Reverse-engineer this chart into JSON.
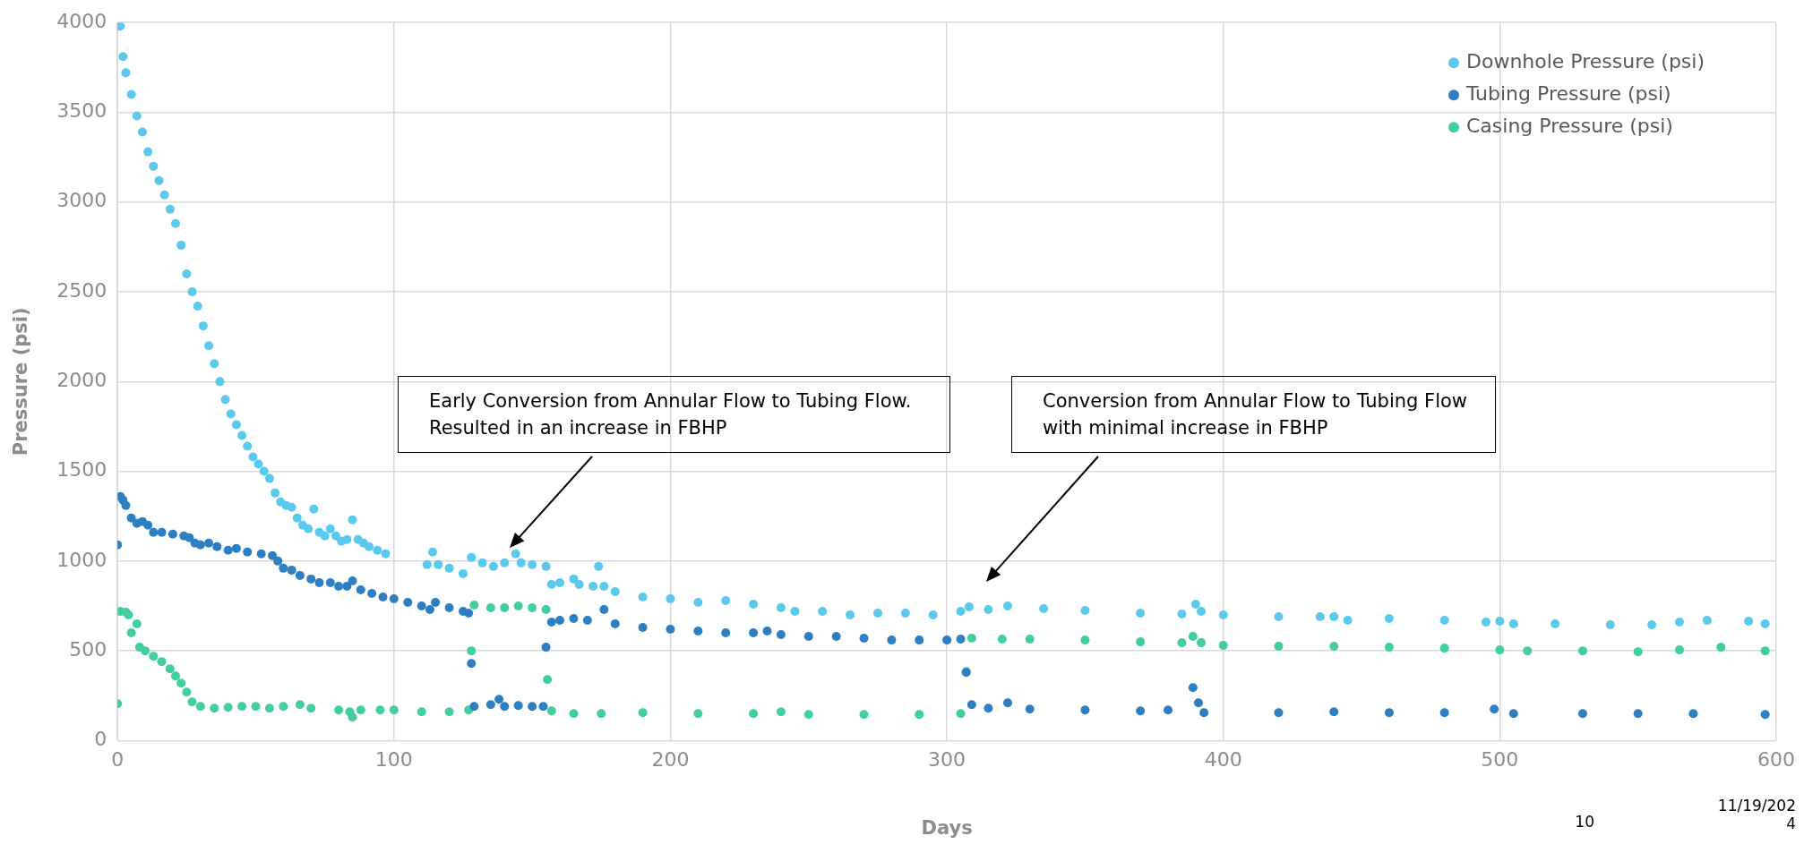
{
  "chart_data": {
    "type": "scatter",
    "xlabel": "Days",
    "ylabel": "Pressure (psi)",
    "xlim": [
      0,
      600
    ],
    "xticks": [
      0,
      100,
      200,
      300,
      400,
      500,
      600
    ],
    "ylim": [
      0,
      4000
    ],
    "yticks": [
      0,
      500,
      1000,
      1500,
      2000,
      2500,
      3000,
      3500,
      4000
    ],
    "grid": true,
    "legend": "top right",
    "marker": "circle",
    "series": [
      {
        "name": "Downhole Pressure (psi)",
        "color": "#5bc8ee",
        "x": [
          1,
          2,
          3,
          5,
          7,
          9,
          11,
          13,
          15,
          17,
          19,
          21,
          23,
          25,
          27,
          29,
          31,
          33,
          35,
          37,
          39,
          41,
          43,
          45,
          47,
          49,
          51,
          53,
          55,
          57,
          59,
          61,
          63,
          65,
          67,
          69,
          71,
          73,
          75,
          77,
          79,
          81,
          83,
          85,
          87,
          89,
          91,
          94,
          97,
          112,
          114,
          116,
          120,
          125,
          128,
          132,
          136,
          140,
          144,
          146,
          150,
          155,
          157,
          160,
          165,
          167,
          172,
          174,
          176,
          180,
          190,
          200,
          210,
          220,
          230,
          240,
          245,
          255,
          265,
          275,
          285,
          295,
          305,
          308,
          315,
          322,
          335,
          350,
          370,
          385,
          390,
          392,
          400,
          420,
          435,
          440,
          445,
          460,
          480,
          495,
          500,
          505,
          520,
          540,
          555,
          565,
          575,
          590,
          596
        ],
        "values": [
          3980,
          3810,
          3720,
          3600,
          3480,
          3390,
          3280,
          3200,
          3120,
          3040,
          2960,
          2880,
          2760,
          2600,
          2500,
          2420,
          2310,
          2200,
          2100,
          2000,
          1900,
          1820,
          1760,
          1700,
          1640,
          1580,
          1540,
          1500,
          1460,
          1380,
          1330,
          1310,
          1300,
          1240,
          1200,
          1180,
          1290,
          1160,
          1140,
          1180,
          1140,
          1110,
          1120,
          1230,
          1120,
          1100,
          1080,
          1060,
          1040,
          980,
          1050,
          980,
          960,
          930,
          1020,
          990,
          970,
          990,
          1040,
          990,
          980,
          970,
          870,
          880,
          900,
          870,
          860,
          970,
          860,
          830,
          800,
          790,
          770,
          780,
          760,
          740,
          720,
          720,
          700,
          710,
          710,
          700,
          720,
          745,
          730,
          750,
          735,
          725,
          710,
          705,
          760,
          720,
          700,
          690,
          690,
          690,
          670,
          680,
          670,
          660,
          665,
          650,
          650,
          645,
          645,
          660,
          670,
          665,
          650
        ]
      },
      {
        "name": "Tubing Pressure (psi)",
        "color": "#2e7fc2",
        "x": [
          0,
          1,
          2,
          3,
          5,
          7,
          9,
          11,
          13,
          16,
          20,
          24,
          26,
          28,
          30,
          33,
          36,
          40,
          43,
          47,
          52,
          56,
          58,
          60,
          63,
          66,
          70,
          73,
          77,
          80,
          83,
          85,
          88,
          92,
          96,
          100,
          105,
          110,
          113,
          115,
          120,
          125,
          127,
          128,
          129,
          135,
          138,
          140,
          145,
          150,
          154,
          155,
          157,
          160,
          165,
          170,
          176,
          180,
          190,
          200,
          210,
          220,
          230,
          235,
          240,
          250,
          260,
          270,
          280,
          290,
          300,
          305,
          307,
          309,
          315,
          322,
          330,
          350,
          370,
          380,
          389,
          391,
          393,
          420,
          440,
          460,
          480,
          498,
          505,
          530,
          550,
          570,
          596
        ],
        "values": [
          1090,
          1360,
          1340,
          1310,
          1240,
          1210,
          1220,
          1200,
          1160,
          1160,
          1150,
          1140,
          1130,
          1100,
          1090,
          1100,
          1080,
          1060,
          1070,
          1050,
          1040,
          1030,
          1000,
          960,
          950,
          920,
          900,
          880,
          880,
          860,
          860,
          890,
          840,
          820,
          800,
          790,
          770,
          750,
          730,
          770,
          740,
          720,
          710,
          430,
          190,
          200,
          230,
          190,
          195,
          190,
          190,
          520,
          660,
          670,
          680,
          670,
          730,
          650,
          630,
          620,
          610,
          600,
          600,
          610,
          590,
          580,
          580,
          570,
          560,
          560,
          560,
          565,
          380,
          200,
          180,
          210,
          175,
          170,
          165,
          170,
          295,
          210,
          155,
          155,
          160,
          155,
          155,
          175,
          150,
          150,
          150,
          150,
          145
        ]
      },
      {
        "name": "Casing Pressure (psi)",
        "color": "#41cf9c",
        "x": [
          0,
          1,
          3,
          4,
          5,
          7,
          8,
          10,
          13,
          16,
          19,
          21,
          23,
          25,
          27,
          30,
          35,
          40,
          45,
          50,
          55,
          60,
          66,
          70,
          80,
          84,
          85,
          88,
          95,
          100,
          110,
          120,
          127,
          128,
          129,
          135,
          140,
          145,
          150,
          155,
          155.5,
          157,
          165,
          175,
          190,
          210,
          230,
          240,
          250,
          270,
          290,
          305,
          307,
          309,
          320,
          330,
          350,
          370,
          385,
          389,
          392,
          400,
          420,
          440,
          460,
          480,
          500,
          510,
          530,
          550,
          565,
          580,
          596
        ],
        "values": [
          205,
          720,
          715,
          700,
          600,
          650,
          520,
          500,
          470,
          440,
          400,
          360,
          320,
          270,
          215,
          190,
          180,
          185,
          190,
          190,
          180,
          190,
          200,
          180,
          170,
          160,
          130,
          170,
          170,
          170,
          160,
          160,
          170,
          500,
          755,
          740,
          740,
          750,
          740,
          730,
          340,
          165,
          150,
          150,
          155,
          150,
          150,
          160,
          145,
          145,
          145,
          150,
          385,
          570,
          565,
          565,
          560,
          550,
          545,
          580,
          545,
          530,
          525,
          525,
          520,
          515,
          505,
          500,
          500,
          495,
          505,
          520,
          500
        ]
      }
    ],
    "annotations": [
      "Early Conversion from Annular Flow to Tubing Flow.\nResulted in an increase in FBHP",
      "Conversion from Annular Flow to Tubing Flow\nwith minimal increase in FBHP",
      "10",
      "11/19/202\n4"
    ]
  }
}
